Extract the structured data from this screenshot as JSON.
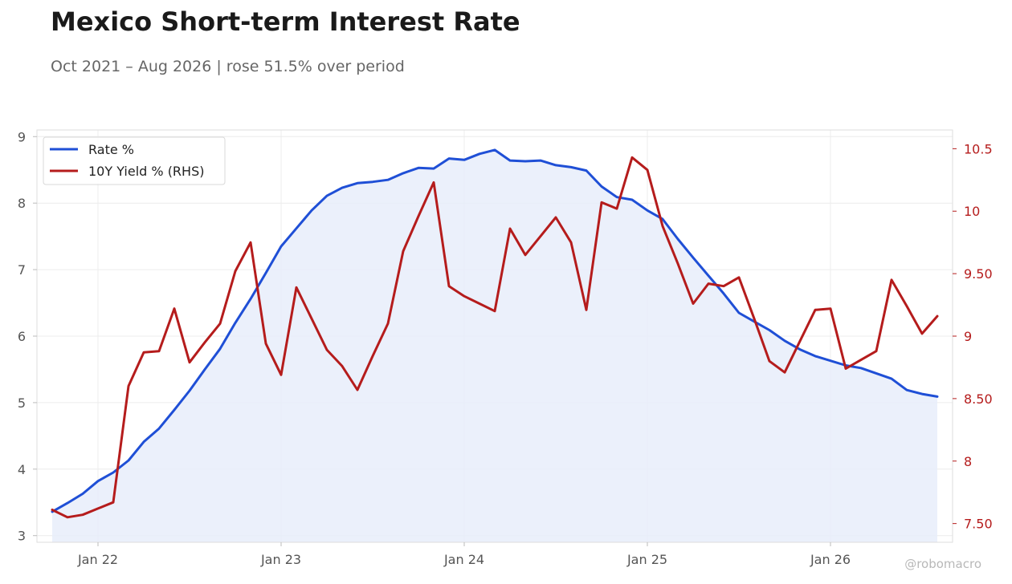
{
  "title": "Mexico Short-term Interest Rate",
  "subtitle": "Oct 2021 – Aug 2026 | rose 51.5% over period",
  "watermark": "@robomacro",
  "colors": {
    "rate": "#1f4fd6",
    "rate_fill": "#e8edfa",
    "yield": "#b51c1c",
    "grid": "#ececec",
    "axis": "#dddddd",
    "left_ticks": "#555555",
    "right_ticks": "#b51c1c"
  },
  "chart_data": {
    "type": "line",
    "grid": true,
    "legend_position": "top-left",
    "x_ticks": [
      "Jan 22",
      "Jan 23",
      "Jan 24",
      "Jan 25",
      "Jan 26"
    ],
    "x_tick_dates": [
      "2022-01",
      "2023-01",
      "2024-01",
      "2025-01",
      "2026-01"
    ],
    "xlim": [
      "2021-09",
      "2026-09"
    ],
    "y_left": {
      "ticks": [
        "3",
        "4",
        "5",
        "6",
        "7",
        "8",
        "9"
      ],
      "ylim": [
        2.9,
        9.1
      ]
    },
    "y_right": {
      "ticks": [
        "7.50",
        "8",
        "8.50",
        "9",
        "9.50",
        "10",
        "10.5"
      ],
      "ylim": [
        7.35,
        10.65
      ]
    },
    "series": [
      {
        "name": "Rate %",
        "axis": "left",
        "fill": true,
        "x": [
          "2021-10",
          "2021-11",
          "2021-12",
          "2022-01",
          "2022-02",
          "2022-03",
          "2022-04",
          "2022-05",
          "2022-06",
          "2022-07",
          "2022-08",
          "2022-09",
          "2022-10",
          "2022-11",
          "2022-12",
          "2023-01",
          "2023-02",
          "2023-03",
          "2023-04",
          "2023-05",
          "2023-06",
          "2023-07",
          "2023-08",
          "2023-09",
          "2023-10",
          "2023-11",
          "2023-12",
          "2024-01",
          "2024-02",
          "2024-03",
          "2024-04",
          "2024-05",
          "2024-06",
          "2024-07",
          "2024-08",
          "2024-09",
          "2024-10",
          "2024-11",
          "2024-12",
          "2025-01",
          "2025-02",
          "2025-03",
          "2025-04",
          "2025-05",
          "2025-06",
          "2025-07",
          "2025-08",
          "2025-09",
          "2025-10",
          "2025-11",
          "2025-12",
          "2026-01",
          "2026-02",
          "2026-03",
          "2026-04",
          "2026-05",
          "2026-06",
          "2026-07",
          "2026-08"
        ],
        "values": [
          3.36,
          3.49,
          3.63,
          3.82,
          3.95,
          4.13,
          4.41,
          4.61,
          4.89,
          5.18,
          5.5,
          5.81,
          6.2,
          6.56,
          6.95,
          7.35,
          7.62,
          7.89,
          8.11,
          8.23,
          8.3,
          8.32,
          8.35,
          8.45,
          8.53,
          8.52,
          8.67,
          8.65,
          8.74,
          8.8,
          8.64,
          8.63,
          8.64,
          8.57,
          8.54,
          8.49,
          8.25,
          8.09,
          8.05,
          7.89,
          7.76,
          7.46,
          7.18,
          6.91,
          6.64,
          6.35,
          6.22,
          6.09,
          5.93,
          5.8,
          5.7,
          5.63,
          5.56,
          5.52,
          5.44,
          5.36,
          5.19,
          5.13,
          5.09
        ]
      },
      {
        "name": "10Y Yield % (RHS)",
        "axis": "right",
        "fill": false,
        "x": [
          "2021-10",
          "2021-11",
          "2021-12",
          "2022-01",
          "2022-02",
          "2022-03",
          "2022-04",
          "2022-05",
          "2022-06",
          "2022-07",
          "2022-08",
          "2022-09",
          "2022-10",
          "2022-11",
          "2022-12",
          "2023-01",
          "2023-02",
          "2023-03",
          "2023-04",
          "2023-05",
          "2023-06",
          "2023-07",
          "2023-08",
          "2023-09",
          "2023-10",
          "2023-11",
          "2023-12",
          "2024-01",
          "2024-02",
          "2024-03",
          "2024-04",
          "2024-05",
          "2024-06",
          "2024-07",
          "2024-08",
          "2024-09",
          "2024-10",
          "2024-11",
          "2024-12",
          "2025-01",
          "2025-02",
          "2025-03",
          "2025-04",
          "2025-05",
          "2025-06",
          "2025-07",
          "2025-08",
          "2025-09",
          "2025-10",
          "2025-11",
          "2025-12",
          "2026-01",
          "2026-02",
          "2026-03",
          "2026-04",
          "2026-05",
          "2026-06",
          "2026-07",
          "2026-08"
        ],
        "values": [
          7.61,
          7.55,
          7.57,
          7.62,
          7.67,
          8.6,
          8.87,
          8.88,
          9.22,
          8.79,
          8.95,
          9.1,
          9.52,
          9.75,
          8.94,
          8.69,
          9.39,
          9.14,
          8.89,
          8.76,
          8.57,
          8.84,
          9.1,
          9.68,
          9.96,
          10.23,
          9.4,
          9.32,
          9.26,
          9.2,
          9.86,
          9.65,
          9.8,
          9.95,
          9.75,
          9.21,
          10.07,
          10.02,
          10.43,
          10.33,
          9.88,
          9.58,
          9.26,
          9.42,
          9.4,
          9.47,
          9.14,
          8.8,
          8.71,
          8.96,
          9.21,
          9.22,
          8.74,
          8.81,
          8.88,
          9.45,
          9.24,
          9.02,
          9.16
        ]
      }
    ]
  }
}
